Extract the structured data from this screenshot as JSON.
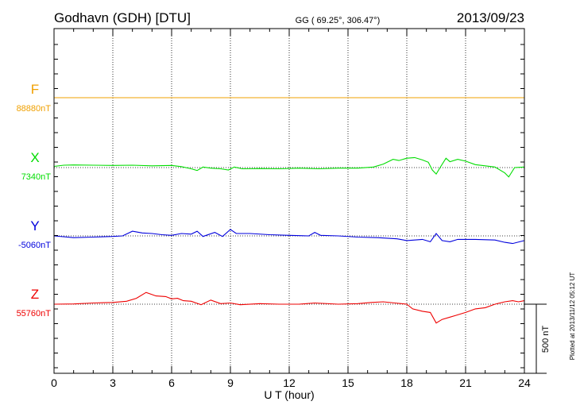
{
  "header": {
    "station": "Godhavn (GDH)  [DTU]",
    "coords": "GG ( 69.25°, 306.47°)",
    "date": "2013/09/23"
  },
  "footer": {
    "plotted": "Plotted at 2013/11/12 05:12 UT"
  },
  "scale_bar": {
    "label": "500 nT",
    "value_nT": 500
  },
  "colors": {
    "F": "#f0a000",
    "X": "#00dd00",
    "Y": "#0000dd",
    "Z": "#ee0000"
  },
  "chart_data": {
    "type": "line",
    "xlabel": "U T (hour)",
    "xlim": [
      0,
      24
    ],
    "xticks": [
      0,
      3,
      6,
      9,
      12,
      15,
      18,
      21,
      24
    ],
    "grid": true,
    "series": [
      {
        "name": "F",
        "baseline_label": "88880nT",
        "baseline": 88880,
        "points": [
          [
            0,
            0
          ],
          [
            24,
            0
          ]
        ]
      },
      {
        "name": "X",
        "baseline_label": "7340nT",
        "baseline": 7340,
        "points": [
          [
            0,
            10
          ],
          [
            0.5,
            20
          ],
          [
            1,
            22
          ],
          [
            2,
            20
          ],
          [
            3,
            18
          ],
          [
            4,
            20
          ],
          [
            5,
            15
          ],
          [
            6,
            18
          ],
          [
            6.5,
            8
          ],
          [
            7,
            -10
          ],
          [
            7.3,
            -25
          ],
          [
            7.6,
            5
          ],
          [
            8,
            -5
          ],
          [
            8.5,
            -10
          ],
          [
            8.9,
            -20
          ],
          [
            9.2,
            5
          ],
          [
            9.6,
            -10
          ],
          [
            10.5,
            -8
          ],
          [
            11.5,
            -10
          ],
          [
            12.5,
            -5
          ],
          [
            13.5,
            -10
          ],
          [
            14.5,
            -5
          ],
          [
            15.5,
            -5
          ],
          [
            16.3,
            5
          ],
          [
            16.8,
            30
          ],
          [
            17.3,
            70
          ],
          [
            17.6,
            60
          ],
          [
            18,
            80
          ],
          [
            18.4,
            85
          ],
          [
            18.8,
            65
          ],
          [
            19.1,
            45
          ],
          [
            19.3,
            -20
          ],
          [
            19.5,
            -55
          ],
          [
            19.7,
            0
          ],
          [
            20,
            80
          ],
          [
            20.2,
            50
          ],
          [
            20.6,
            70
          ],
          [
            21,
            55
          ],
          [
            21.5,
            25
          ],
          [
            22,
            15
          ],
          [
            22.5,
            5
          ],
          [
            23,
            -45
          ],
          [
            23.2,
            -80
          ],
          [
            23.5,
            0
          ],
          [
            24,
            5
          ]
        ]
      },
      {
        "name": "Y",
        "baseline_label": "-5060nT",
        "baseline": -5060,
        "points": [
          [
            0,
            0
          ],
          [
            1,
            -15
          ],
          [
            2,
            -10
          ],
          [
            3,
            -5
          ],
          [
            3.5,
            0
          ],
          [
            4,
            40
          ],
          [
            4.5,
            25
          ],
          [
            5,
            20
          ],
          [
            5.5,
            10
          ],
          [
            6,
            5
          ],
          [
            6.5,
            20
          ],
          [
            7,
            15
          ],
          [
            7.3,
            40
          ],
          [
            7.6,
            -5
          ],
          [
            8.2,
            30
          ],
          [
            8.6,
            -5
          ],
          [
            9,
            55
          ],
          [
            9.3,
            20
          ],
          [
            10,
            20
          ],
          [
            11,
            10
          ],
          [
            12,
            5
          ],
          [
            13,
            0
          ],
          [
            13.3,
            30
          ],
          [
            13.6,
            5
          ],
          [
            14.5,
            0
          ],
          [
            15.5,
            -10
          ],
          [
            16.5,
            -15
          ],
          [
            17.5,
            -25
          ],
          [
            18,
            -40
          ],
          [
            18.8,
            -30
          ],
          [
            19.2,
            -50
          ],
          [
            19.5,
            20
          ],
          [
            19.8,
            -40
          ],
          [
            20.2,
            -50
          ],
          [
            20.6,
            -30
          ],
          [
            21.5,
            -30
          ],
          [
            22.5,
            -35
          ],
          [
            23,
            -55
          ],
          [
            23.4,
            -65
          ],
          [
            24,
            -40
          ]
        ]
      },
      {
        "name": "Z",
        "baseline_label": "55760nT",
        "baseline": 55760,
        "points": [
          [
            0,
            0
          ],
          [
            1,
            2
          ],
          [
            2,
            10
          ],
          [
            3,
            15
          ],
          [
            3.7,
            25
          ],
          [
            4.2,
            50
          ],
          [
            4.7,
            100
          ],
          [
            5.2,
            70
          ],
          [
            5.7,
            65
          ],
          [
            6,
            45
          ],
          [
            6.3,
            50
          ],
          [
            6.6,
            30
          ],
          [
            7,
            25
          ],
          [
            7.5,
            -5
          ],
          [
            8,
            35
          ],
          [
            8.5,
            5
          ],
          [
            9,
            10
          ],
          [
            9.5,
            -5
          ],
          [
            10.5,
            5
          ],
          [
            11.5,
            0
          ],
          [
            12.5,
            0
          ],
          [
            13.3,
            10
          ],
          [
            14.5,
            0
          ],
          [
            15.5,
            5
          ],
          [
            16.2,
            15
          ],
          [
            16.8,
            20
          ],
          [
            17.4,
            10
          ],
          [
            18,
            0
          ],
          [
            18.3,
            -40
          ],
          [
            18.8,
            -60
          ],
          [
            19.2,
            -70
          ],
          [
            19.5,
            -160
          ],
          [
            19.8,
            -130
          ],
          [
            20.2,
            -110
          ],
          [
            20.5,
            -95
          ],
          [
            21,
            -70
          ],
          [
            21.5,
            -40
          ],
          [
            22,
            -30
          ],
          [
            22.5,
            0
          ],
          [
            23,
            20
          ],
          [
            23.4,
            30
          ],
          [
            23.7,
            20
          ],
          [
            24,
            30
          ]
        ]
      }
    ]
  }
}
